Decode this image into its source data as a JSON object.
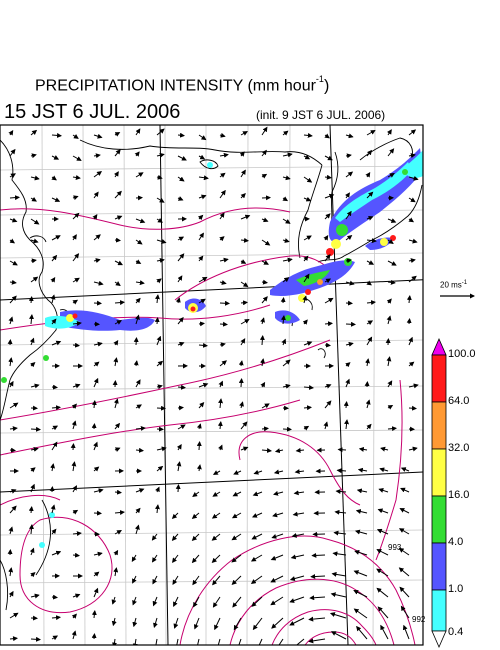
{
  "header": {
    "title_text": "PRECIPITATION INTENSITY (mm hour",
    "title_exp": "-1",
    "title_close": ")",
    "datetime": "15 JST 6 JUL. 2006",
    "init": "(init. 9 JST 6 JUL. 2006)"
  },
  "wind_scale": {
    "label": "20 ms",
    "exp": "-1"
  },
  "colorbar": {
    "labels": [
      "100.0",
      "64.0",
      "32.0",
      "16.0",
      "4.0",
      "1.0",
      "0.4"
    ],
    "colors": [
      "#ee00ee",
      "#ff1a1a",
      "#ff9933",
      "#ffff44",
      "#33dd33",
      "#5555ff",
      "#44ffff",
      "#ffffff"
    ]
  },
  "contour_labels": [
    "993",
    "992"
  ]
}
